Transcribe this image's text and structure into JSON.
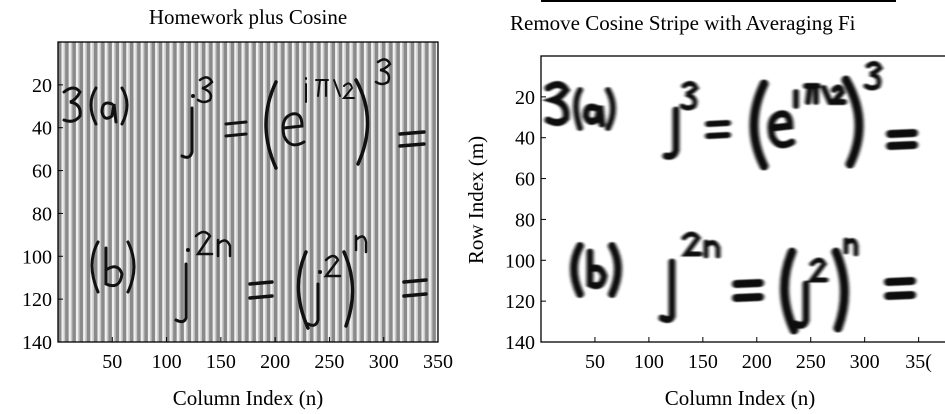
{
  "chart_data": [
    {
      "type": "heatmap",
      "title": "Homework plus Cosine",
      "xlabel": "Column Index (n)",
      "ylabel": "",
      "xlim": [
        0,
        350
      ],
      "ylim": [
        140,
        0
      ],
      "xticks": [
        50,
        100,
        150,
        200,
        250,
        300,
        350
      ],
      "yticks": [
        20,
        40,
        60,
        80,
        100,
        120,
        140
      ],
      "handwriting_rows": [
        "3(a)   j³ = (e^{jπ/2})³ =",
        "(b)   j^{2n} = (j²)^n ="
      ],
      "overlay": "vertical cosine stripes"
    },
    {
      "type": "heatmap",
      "title": "Remove Cosine Stripe with Averaging Fi",
      "xlabel": "Column Index (n)",
      "ylabel": "Row Index (m)",
      "xlim": [
        0,
        350
      ],
      "ylim": [
        140,
        0
      ],
      "xticks": [
        50,
        100,
        150,
        200,
        250,
        300,
        "35("
      ],
      "yticks": [
        20,
        40,
        60,
        80,
        100,
        120,
        140
      ],
      "handwriting_rows": [
        "3(a)   j³ = (e^{jπ/2})³ =",
        "(b)   j^{2n} = (j²)^n ="
      ],
      "overlay": "blurred by averaging filter"
    }
  ]
}
